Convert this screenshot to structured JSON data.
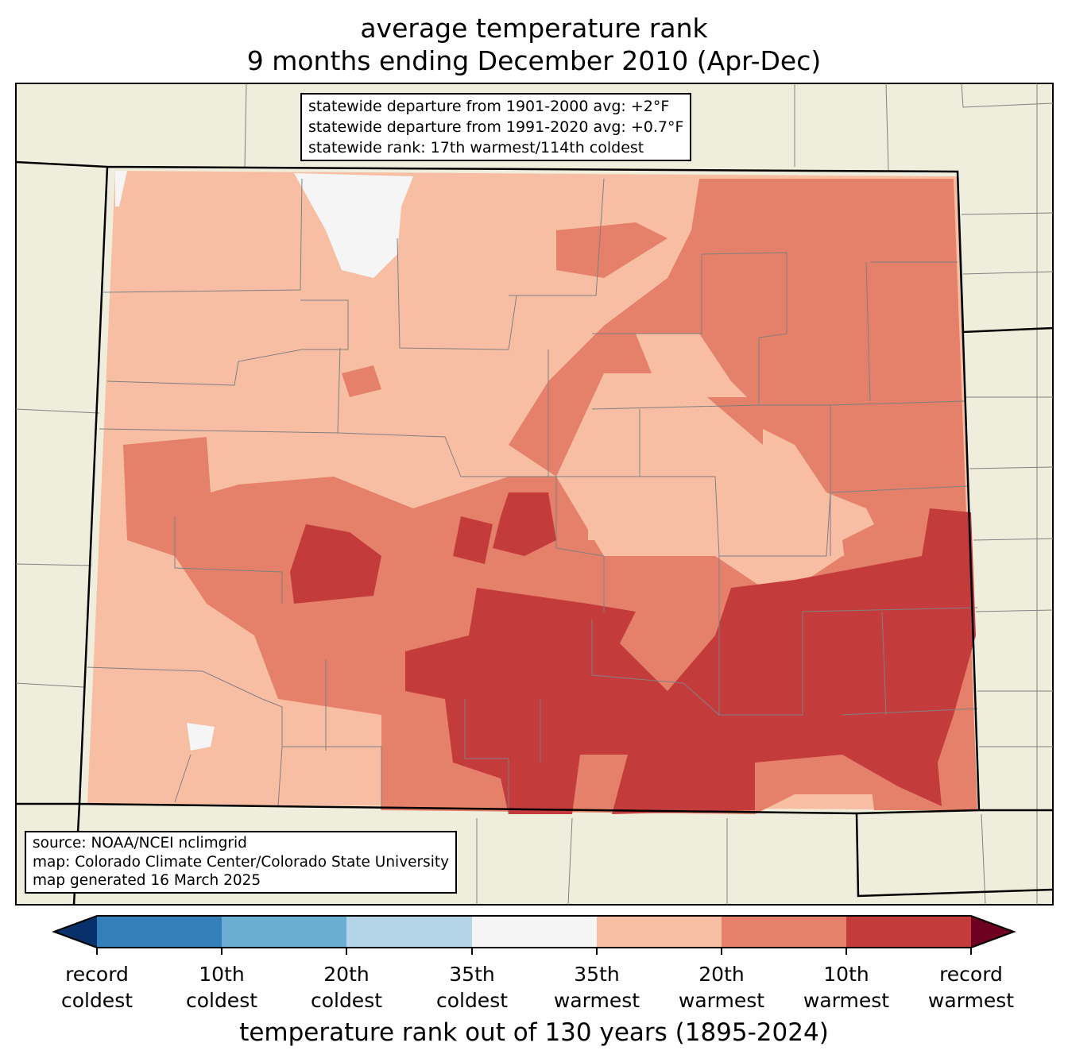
{
  "title": {
    "line1": "average temperature rank",
    "line2": "9 months ending December 2010 (Apr-Dec)"
  },
  "stats_box": {
    "line1": "statewide departure from 1901-2000 avg: +2°F",
    "line2": "statewide departure from 1991-2020 avg: +0.7°F",
    "line3": "statewide rank: 17th warmest/114th coldest"
  },
  "source_box": {
    "line1": "source: NOAA/NCEI nclimgrid",
    "line2": "map: Colorado Climate Center/Colorado State University",
    "line3": "map generated 16 March 2025"
  },
  "colorbar": {
    "colors": [
      "#08306b",
      "#327fb9",
      "#6aaed3",
      "#b3d5e7",
      "#f5f5f5",
      "#f8bea4",
      "#e5806a",
      "#c43b3c",
      "#6e0020"
    ],
    "ticks": [
      [
        "record",
        "coldest"
      ],
      [
        "10th",
        "coldest"
      ],
      [
        "20th",
        "coldest"
      ],
      [
        "35th",
        "coldest"
      ],
      [
        "35th",
        "warmest"
      ],
      [
        "20th",
        "warmest"
      ],
      [
        "10th",
        "warmest"
      ],
      [
        "record",
        "warmest"
      ]
    ],
    "label": "temperature rank out of 130 years (1895-2024)"
  },
  "colors": {
    "land": "#efeedc",
    "near_normal": "#f5f5f5",
    "warm20": "#f8bea4",
    "warm10": "#e5806a",
    "record_warm": "#c43b3c"
  }
}
